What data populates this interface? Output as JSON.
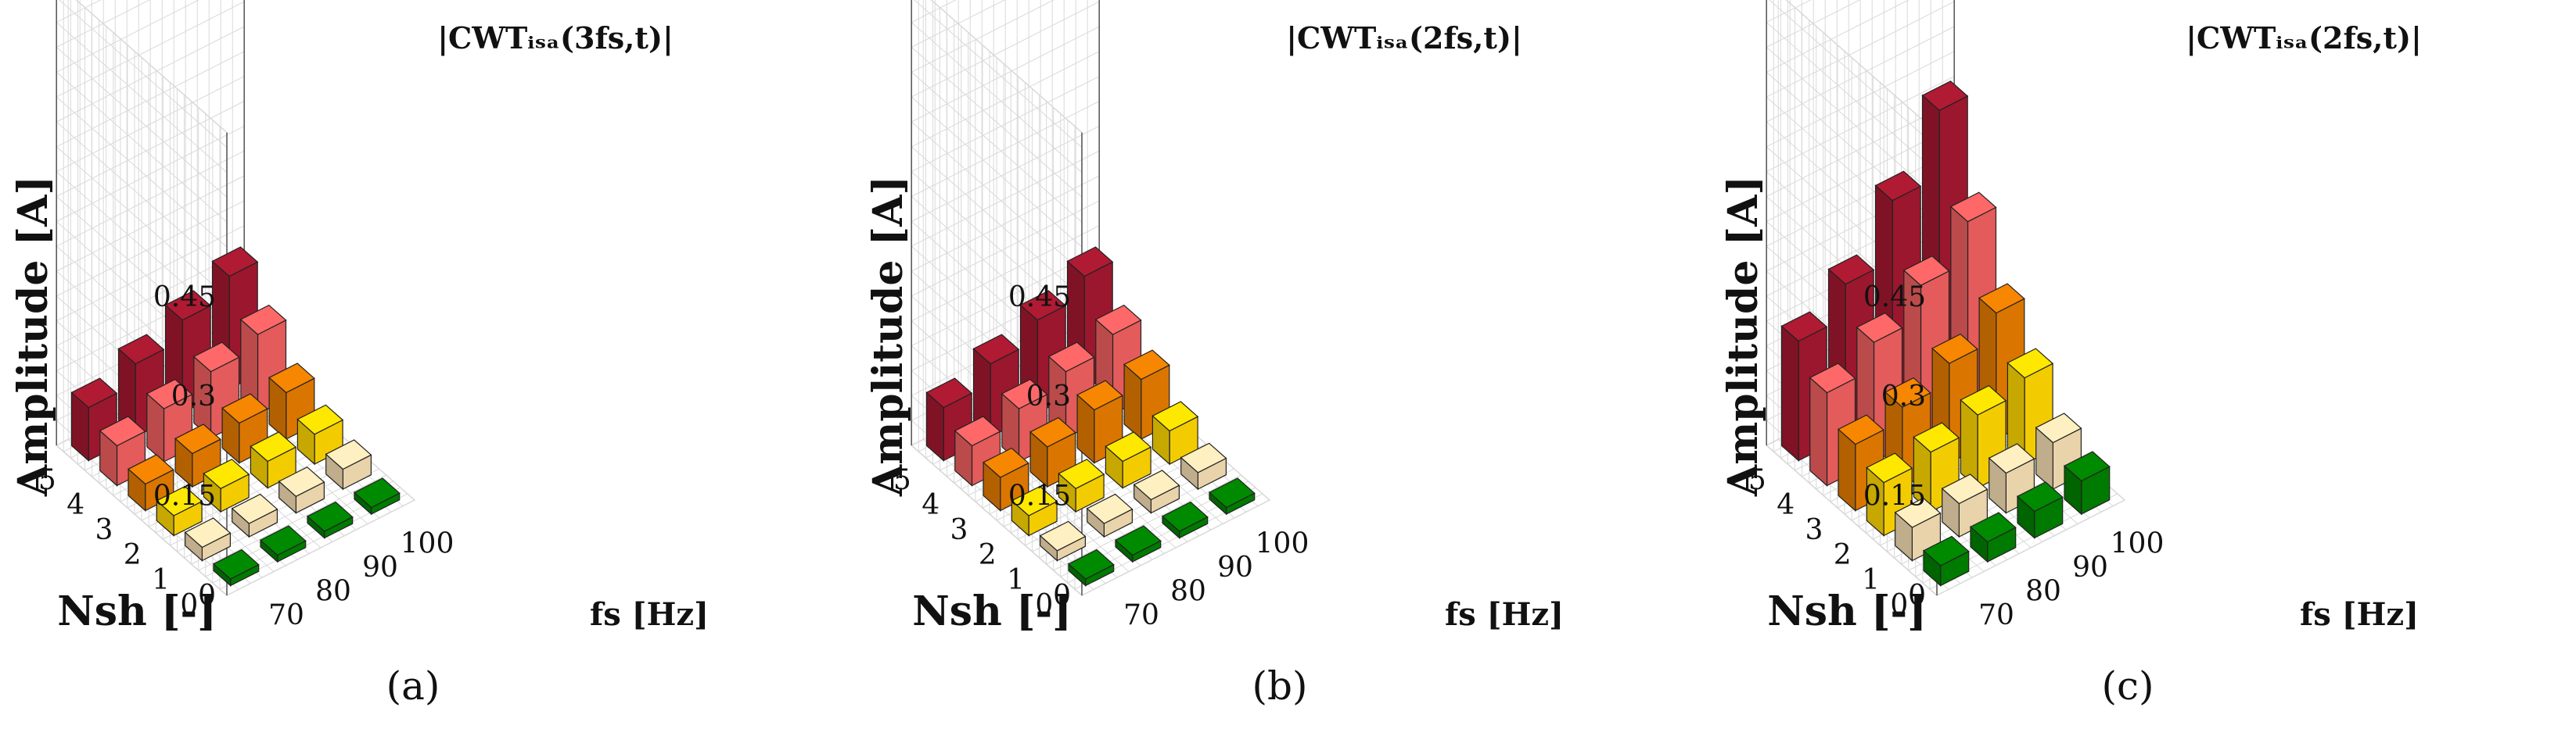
{
  "figure": {
    "captions": [
      "(a)",
      "(b)",
      "(c)"
    ]
  },
  "chart_data": [
    {
      "type": "bar3d",
      "title": "|CWTᵢₛₐ(3fs,t)|",
      "zlabel": "Amplitude [A]",
      "ylabel": "Nsh [-]",
      "xlabel": "fs [Hz]",
      "x": [
        70,
        80,
        90,
        100
      ],
      "y": [
        0,
        1,
        2,
        3,
        4,
        5
      ],
      "zticks": [
        "0",
        "0.15",
        "0.3",
        "0.45"
      ],
      "zlim": [
        0,
        0.45
      ],
      "grid": true,
      "colors": [
        "#008000",
        "#F5DEB3",
        "#FFD700",
        "#E57C00",
        "#F06060",
        "#A3182F"
      ],
      "values": [
        [
          0.01,
          0.01,
          0.01,
          0.01
        ],
        [
          0.02,
          0.02,
          0.025,
          0.03
        ],
        [
          0.03,
          0.035,
          0.04,
          0.045
        ],
        [
          0.04,
          0.05,
          0.06,
          0.07
        ],
        [
          0.06,
          0.08,
          0.1,
          0.12
        ],
        [
          0.08,
          0.11,
          0.14,
          0.17
        ]
      ]
    },
    {
      "type": "bar3d",
      "title": "|CWTᵢₛₐ(2fs,t)|",
      "zlabel": "Amplitude [A]",
      "ylabel": "Nsh [-]",
      "xlabel": "fs [Hz]",
      "x": [
        70,
        80,
        90,
        100
      ],
      "y": [
        0,
        1,
        2,
        3,
        4,
        5
      ],
      "zticks": [
        "0",
        "0.15",
        "0.3",
        "0.45"
      ],
      "zlim": [
        0,
        0.45
      ],
      "grid": true,
      "colors": [
        "#008000",
        "#F5DEB3",
        "#FFD700",
        "#E57C00",
        "#F06060",
        "#A3182F"
      ],
      "values": [
        [
          0.01,
          0.01,
          0.01,
          0.01
        ],
        [
          0.015,
          0.02,
          0.02,
          0.025
        ],
        [
          0.03,
          0.035,
          0.04,
          0.05
        ],
        [
          0.05,
          0.06,
          0.08,
          0.09
        ],
        [
          0.06,
          0.08,
          0.1,
          0.12
        ],
        [
          0.08,
          0.11,
          0.14,
          0.17
        ]
      ]
    },
    {
      "type": "bar3d",
      "title": "|CWTᵢₛₐ(2fs,t)|",
      "zlabel": "Amplitude [A]",
      "ylabel": "Nsh [-]",
      "xlabel": "fs [Hz]",
      "x": [
        70,
        80,
        90,
        100
      ],
      "y": [
        0,
        1,
        2,
        3,
        4,
        5
      ],
      "zticks": [
        "0",
        "0.15",
        "0.3",
        "0.45"
      ],
      "zlim": [
        0,
        0.45
      ],
      "grid": true,
      "colors": [
        "#008000",
        "#F5DEB3",
        "#FFD700",
        "#E57C00",
        "#F06060",
        "#A3182F"
      ],
      "values": [
        [
          0.03,
          0.03,
          0.04,
          0.05
        ],
        [
          0.05,
          0.05,
          0.06,
          0.07
        ],
        [
          0.08,
          0.09,
          0.11,
          0.13
        ],
        [
          0.1,
          0.12,
          0.15,
          0.19
        ],
        [
          0.14,
          0.18,
          0.23,
          0.29
        ],
        [
          0.18,
          0.23,
          0.32,
          0.42
        ]
      ]
    }
  ]
}
